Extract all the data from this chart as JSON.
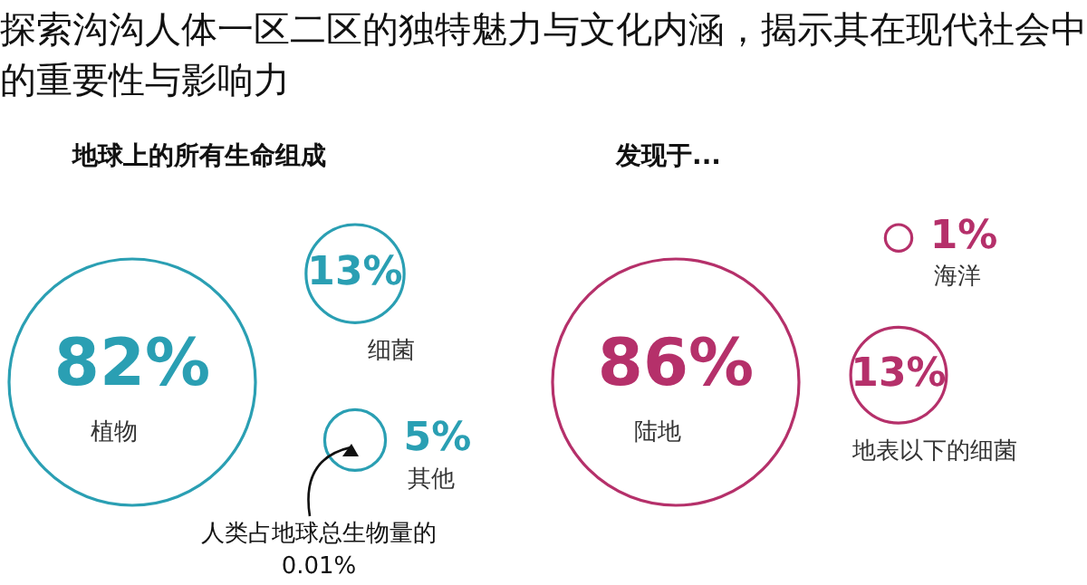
{
  "chart_data": [
    {
      "type": "other",
      "title": "探索沟沟人体一区二区的独特魅力与文化内涵，揭示其在现代社会中的重要性与影响力"
    },
    {
      "type": "other",
      "title": "地球上的所有生命组成",
      "categories": [
        "植物",
        "细菌",
        "其他"
      ],
      "values": [
        82,
        13,
        5
      ],
      "value_labels": [
        "82%",
        "13%",
        "5%"
      ],
      "color": "#2a9fb3",
      "annotations": [
        "人类占地球总生物量的 0.01%"
      ]
    },
    {
      "type": "other",
      "title": "发现于...",
      "categories": [
        "陆地",
        "海洋",
        "地表以下的细菌"
      ],
      "values": [
        86,
        1,
        13
      ],
      "value_labels": [
        "86%",
        "1%",
        "13%"
      ],
      "color": "#b5306a"
    }
  ]
}
